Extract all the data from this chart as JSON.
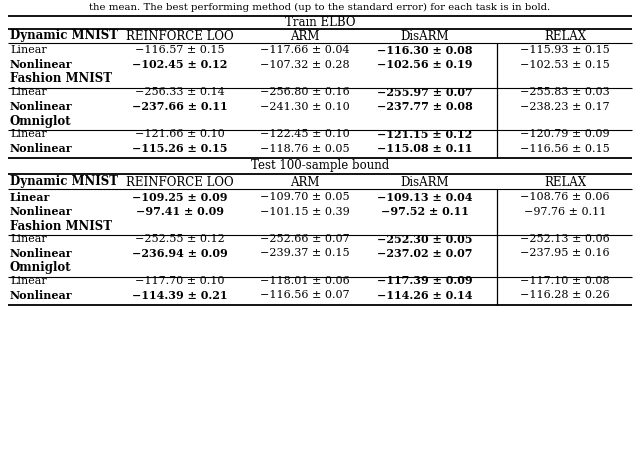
{
  "caption_top": "the mean. The best performing method (up to the standard error) for each task is in bold.",
  "section1_title": "Train ELBO",
  "section2_title": "Test 100-sample bound",
  "columns": [
    "",
    "REINFORCE LOO",
    "ARM",
    "DisARM",
    "RELAX"
  ],
  "section1": {
    "header": "Dynamic MNIST",
    "groups": [
      {
        "rows": [
          {
            "label": "Linear",
            "label_bold": false,
            "values": [
              {
                "text": "−116.57 ± 0.15",
                "bold": false
              },
              {
                "text": "−117.66 ± 0.04",
                "bold": false
              },
              {
                "text": "−116.30 ± 0.08",
                "bold": true
              },
              {
                "text": "−115.93 ± 0.15",
                "bold": false
              }
            ]
          },
          {
            "label": "Nonlinear",
            "label_bold": true,
            "values": [
              {
                "text": "−102.45 ± 0.12",
                "bold": true
              },
              {
                "text": "−107.32 ± 0.28",
                "bold": false
              },
              {
                "text": "−102.56 ± 0.19",
                "bold": true
              },
              {
                "text": "−102.53 ± 0.15",
                "bold": false
              }
            ]
          }
        ],
        "subheader": "Fashion MNIST"
      },
      {
        "rows": [
          {
            "label": "Linear",
            "label_bold": false,
            "values": [
              {
                "text": "−256.33 ± 0.14",
                "bold": false
              },
              {
                "text": "−256.80 ± 0.16",
                "bold": false
              },
              {
                "text": "−255.97 ± 0.07",
                "bold": true
              },
              {
                "text": "−255.83 ± 0.03",
                "bold": false
              }
            ]
          },
          {
            "label": "Nonlinear",
            "label_bold": true,
            "values": [
              {
                "text": "−237.66 ± 0.11",
                "bold": true
              },
              {
                "text": "−241.30 ± 0.10",
                "bold": false
              },
              {
                "text": "−237.77 ± 0.08",
                "bold": true
              },
              {
                "text": "−238.23 ± 0.17",
                "bold": false
              }
            ]
          }
        ],
        "subheader": "Omniglot"
      },
      {
        "rows": [
          {
            "label": "Linear",
            "label_bold": false,
            "values": [
              {
                "text": "−121.66 ± 0.10",
                "bold": false
              },
              {
                "text": "−122.45 ± 0.10",
                "bold": false
              },
              {
                "text": "−121.15 ± 0.12",
                "bold": true
              },
              {
                "text": "−120.79 ± 0.09",
                "bold": false
              }
            ]
          },
          {
            "label": "Nonlinear",
            "label_bold": true,
            "values": [
              {
                "text": "−115.26 ± 0.15",
                "bold": true
              },
              {
                "text": "−118.76 ± 0.05",
                "bold": false
              },
              {
                "text": "−115.08 ± 0.11",
                "bold": true
              },
              {
                "text": "−116.56 ± 0.15",
                "bold": false
              }
            ]
          }
        ],
        "subheader": null
      }
    ]
  },
  "section2": {
    "header": "Dynamic MNIST",
    "groups": [
      {
        "rows": [
          {
            "label": "Linear",
            "label_bold": true,
            "values": [
              {
                "text": "−109.25 ± 0.09",
                "bold": true
              },
              {
                "text": "−109.70 ± 0.05",
                "bold": false
              },
              {
                "text": "−109.13 ± 0.04",
                "bold": true
              },
              {
                "text": "−108.76 ± 0.06",
                "bold": false
              }
            ]
          },
          {
            "label": "Nonlinear",
            "label_bold": true,
            "values": [
              {
                "text": "−97.41 ± 0.09",
                "bold": true
              },
              {
                "text": "−101.15 ± 0.39",
                "bold": false
              },
              {
                "text": "−97.52 ± 0.11",
                "bold": true
              },
              {
                "text": "−97.76 ± 0.11",
                "bold": false
              }
            ]
          }
        ],
        "subheader": "Fashion MNIST"
      },
      {
        "rows": [
          {
            "label": "Linear",
            "label_bold": false,
            "values": [
              {
                "text": "−252.55 ± 0.12",
                "bold": false
              },
              {
                "text": "−252.66 ± 0.07",
                "bold": false
              },
              {
                "text": "−252.30 ± 0.05",
                "bold": true
              },
              {
                "text": "−252.13 ± 0.06",
                "bold": false
              }
            ]
          },
          {
            "label": "Nonlinear",
            "label_bold": true,
            "values": [
              {
                "text": "−236.94 ± 0.09",
                "bold": true
              },
              {
                "text": "−239.37 ± 0.15",
                "bold": false
              },
              {
                "text": "−237.02 ± 0.07",
                "bold": true
              },
              {
                "text": "−237.95 ± 0.16",
                "bold": false
              }
            ]
          }
        ],
        "subheader": "Omniglot"
      },
      {
        "rows": [
          {
            "label": "Linear",
            "label_bold": false,
            "values": [
              {
                "text": "−117.70 ± 0.10",
                "bold": false
              },
              {
                "text": "−118.01 ± 0.06",
                "bold": false
              },
              {
                "text": "−117.39 ± 0.09",
                "bold": true
              },
              {
                "text": "−117.10 ± 0.08",
                "bold": false
              }
            ]
          },
          {
            "label": "Nonlinear",
            "label_bold": true,
            "values": [
              {
                "text": "−114.39 ± 0.21",
                "bold": true
              },
              {
                "text": "−116.56 ± 0.07",
                "bold": false
              },
              {
                "text": "−114.26 ± 0.14",
                "bold": true
              },
              {
                "text": "−116.28 ± 0.26",
                "bold": false
              }
            ]
          }
        ],
        "subheader": null
      }
    ]
  }
}
